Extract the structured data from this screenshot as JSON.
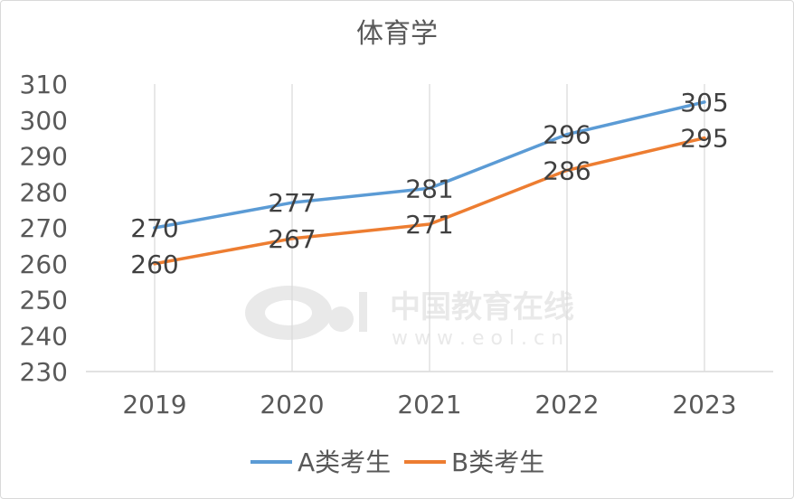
{
  "chart_data": {
    "type": "line",
    "title": "体育学",
    "categories": [
      "2019",
      "2020",
      "2021",
      "2022",
      "2023"
    ],
    "series": [
      {
        "name": "A类考生",
        "values": [
          270,
          277,
          281,
          296,
          305
        ],
        "color": "#5b9bd5"
      },
      {
        "name": "B类考生",
        "values": [
          260,
          267,
          271,
          286,
          295
        ],
        "color": "#ed7d31"
      }
    ],
    "ylim": [
      230,
      310
    ],
    "yticks": [
      "230",
      "240",
      "250",
      "260",
      "270",
      "280",
      "290",
      "300",
      "310"
    ],
    "xlabel": "",
    "ylabel": "",
    "grid": "vertical",
    "legend": "bottom"
  },
  "watermark": {
    "brand": "中国教育在线",
    "url": "w w w . e o l . c n"
  }
}
